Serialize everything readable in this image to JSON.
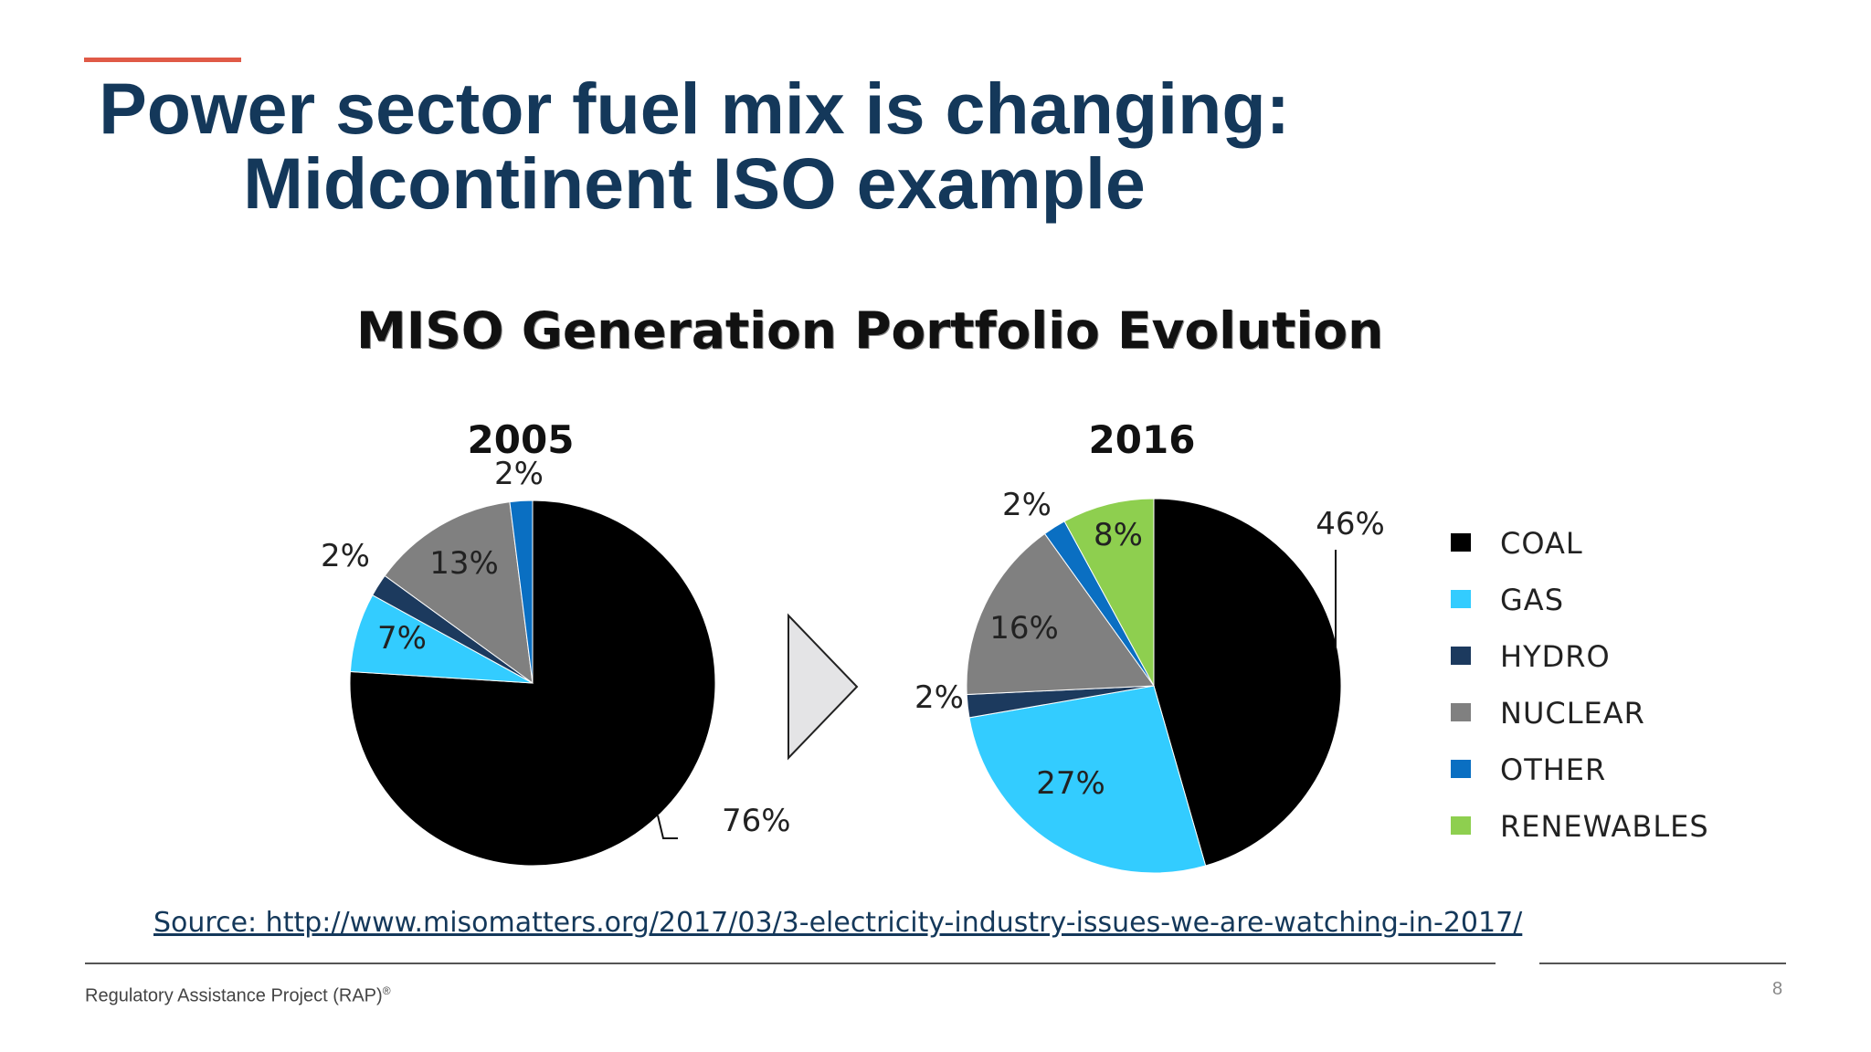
{
  "slide": {
    "title_line1": "Power sector fuel mix is changing:",
    "title_line2": "Midcontinent ISO example",
    "accent_color": "#e05a47",
    "title_color": "#14385a",
    "source": "Source: http://www.misomatters.org/2017/03/3-electricity-industry-issues-we-are-watching-in-2017/",
    "footer": "Regulatory Assistance Project (RAP)",
    "footer_mark": "®",
    "page_number": "8"
  },
  "chart_data": {
    "type": "pie",
    "title": "MISO Generation Portfolio Evolution",
    "legend_placement": "right",
    "legend": [
      {
        "name": "COAL",
        "color": "#000000"
      },
      {
        "name": "GAS",
        "color": "#33ccff"
      },
      {
        "name": "HYDRO",
        "color": "#1c3a5e"
      },
      {
        "name": "NUCLEAR",
        "color": "#808080"
      },
      {
        "name": "OTHER",
        "color": "#0a6fc2"
      },
      {
        "name": "RENEWABLES",
        "color": "#8ecf4f"
      }
    ],
    "pies": [
      {
        "label": "2005",
        "slices": [
          {
            "name": "COAL",
            "value": 76,
            "label": "76%"
          },
          {
            "name": "GAS",
            "value": 7,
            "label": "7%"
          },
          {
            "name": "HYDRO",
            "value": 2,
            "label": "2%"
          },
          {
            "name": "NUCLEAR",
            "value": 13,
            "label": "13%"
          },
          {
            "name": "OTHER",
            "value": 2,
            "label": "2%"
          }
        ]
      },
      {
        "label": "2016",
        "slices": [
          {
            "name": "COAL",
            "value": 46,
            "label": "46%"
          },
          {
            "name": "GAS",
            "value": 27,
            "label": "27%"
          },
          {
            "name": "HYDRO",
            "value": 2,
            "label": "2%"
          },
          {
            "name": "NUCLEAR",
            "value": 16,
            "label": "16%"
          },
          {
            "name": "OTHER",
            "value": 2,
            "label": "2%"
          },
          {
            "name": "RENEWABLES",
            "value": 8,
            "label": "8%"
          }
        ]
      }
    ]
  }
}
